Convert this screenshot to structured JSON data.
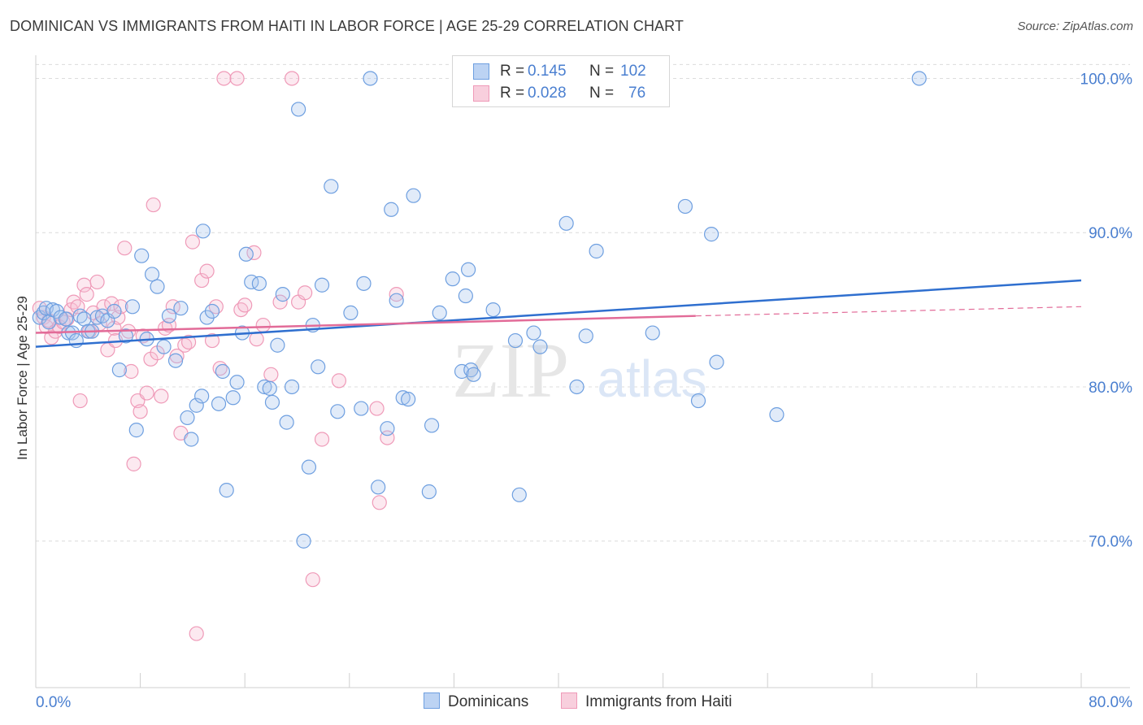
{
  "title": "DOMINICAN VS IMMIGRANTS FROM HAITI IN LABOR FORCE | AGE 25-29 CORRELATION CHART",
  "source": "Source: ZipAtlas.com",
  "watermark": {
    "zip": "ZIP",
    "atlas": "atlas"
  },
  "colors": {
    "blue": "#6e9fe0",
    "blue_fill": "#a9c6ef",
    "blue_line": "#2f6fcf",
    "pink": "#ef9ab8",
    "pink_fill": "#f6c1d3",
    "pink_line": "#e26b98",
    "axis_label": "#4a7fd0",
    "grid": "#dcdcdc"
  },
  "stats": {
    "r_label": "R =",
    "n_label": "N =",
    "rows": [
      {
        "r": "0.145",
        "n": "102"
      },
      {
        "r": "0.028",
        "n": "76"
      }
    ]
  },
  "legend": [
    "Dominicans",
    "Immigrants from Haiti"
  ],
  "chart_data": {
    "type": "scatter",
    "title": "DOMINICAN VS IMMIGRANTS FROM HAITI IN LABOR FORCE | AGE 25-29 CORRELATION CHART",
    "xlabel": "",
    "ylabel": "In Labor Force | Age 25-29",
    "xlim": [
      0,
      80
    ],
    "ylim": [
      60.5,
      101.5
    ],
    "x_tick_labels": [
      "0.0%",
      "80.0%"
    ],
    "y_ticks": [
      70,
      80,
      90,
      100
    ],
    "y_tick_labels": [
      "70.0%",
      "80.0%",
      "90.0%",
      "100.0%"
    ],
    "grid": true,
    "series": [
      {
        "name": "Dominicans",
        "R": 0.145,
        "N": 102,
        "trend": {
          "x": [
            0,
            80
          ],
          "y": [
            82.6,
            86.9
          ]
        },
        "points": [
          [
            0.3,
            84.5
          ],
          [
            0.6,
            84.8
          ],
          [
            0.8,
            85.1
          ],
          [
            1.0,
            84.2
          ],
          [
            1.3,
            85.0
          ],
          [
            1.6,
            84.9
          ],
          [
            1.9,
            84.5
          ],
          [
            2.3,
            84.4
          ],
          [
            2.5,
            83.5
          ],
          [
            2.8,
            83.5
          ],
          [
            3.1,
            83.0
          ],
          [
            3.4,
            84.6
          ],
          [
            3.7,
            84.4
          ],
          [
            4.0,
            83.6
          ],
          [
            4.3,
            83.6
          ],
          [
            4.7,
            84.5
          ],
          [
            5.1,
            84.6
          ],
          [
            5.5,
            84.3
          ],
          [
            6.0,
            84.9
          ],
          [
            6.4,
            81.1
          ],
          [
            6.9,
            83.3
          ],
          [
            7.4,
            85.2
          ],
          [
            7.7,
            77.2
          ],
          [
            8.1,
            88.5
          ],
          [
            8.5,
            83.1
          ],
          [
            8.9,
            87.3
          ],
          [
            9.3,
            86.5
          ],
          [
            9.8,
            82.6
          ],
          [
            10.2,
            84.6
          ],
          [
            10.7,
            81.7
          ],
          [
            11.1,
            85.1
          ],
          [
            11.6,
            78.0
          ],
          [
            11.9,
            76.6
          ],
          [
            12.3,
            78.8
          ],
          [
            12.7,
            79.4
          ],
          [
            12.8,
            90.1
          ],
          [
            13.1,
            84.5
          ],
          [
            13.5,
            84.9
          ],
          [
            14.0,
            78.9
          ],
          [
            14.3,
            81.0
          ],
          [
            14.6,
            73.3
          ],
          [
            15.1,
            79.3
          ],
          [
            15.4,
            80.3
          ],
          [
            15.8,
            83.5
          ],
          [
            16.1,
            88.6
          ],
          [
            16.5,
            86.8
          ],
          [
            17.1,
            86.7
          ],
          [
            17.5,
            80.0
          ],
          [
            17.9,
            79.9
          ],
          [
            18.1,
            79.0
          ],
          [
            18.5,
            82.7
          ],
          [
            18.9,
            86.0
          ],
          [
            19.2,
            77.7
          ],
          [
            19.6,
            80.0
          ],
          [
            20.1,
            98.0
          ],
          [
            20.5,
            70.0
          ],
          [
            20.9,
            74.8
          ],
          [
            21.2,
            84.0
          ],
          [
            21.6,
            81.3
          ],
          [
            21.9,
            86.6
          ],
          [
            22.6,
            93.0
          ],
          [
            23.1,
            78.4
          ],
          [
            24.1,
            84.8
          ],
          [
            24.9,
            78.6
          ],
          [
            25.1,
            86.7
          ],
          [
            25.6,
            100.0
          ],
          [
            26.2,
            73.5
          ],
          [
            26.9,
            77.3
          ],
          [
            27.2,
            91.5
          ],
          [
            27.6,
            85.6
          ],
          [
            28.1,
            79.3
          ],
          [
            28.5,
            79.2
          ],
          [
            28.9,
            92.4
          ],
          [
            30.1,
            73.2
          ],
          [
            30.3,
            77.5
          ],
          [
            30.9,
            84.8
          ],
          [
            31.9,
            87.0
          ],
          [
            32.6,
            81.0
          ],
          [
            32.9,
            85.9
          ],
          [
            33.1,
            87.6
          ],
          [
            33.3,
            81.1
          ],
          [
            33.5,
            80.8
          ],
          [
            35.0,
            85.0
          ],
          [
            36.7,
            83.0
          ],
          [
            37.0,
            73.0
          ],
          [
            38.1,
            83.5
          ],
          [
            38.6,
            82.6
          ],
          [
            40.6,
            90.6
          ],
          [
            41.4,
            80.0
          ],
          [
            42.1,
            83.3
          ],
          [
            42.9,
            88.8
          ],
          [
            47.2,
            83.5
          ],
          [
            49.7,
            91.7
          ],
          [
            50.7,
            79.1
          ],
          [
            51.7,
            89.9
          ],
          [
            52.1,
            81.6
          ],
          [
            56.7,
            78.2
          ],
          [
            67.6,
            100.0
          ]
        ]
      },
      {
        "name": "Immigrants from Haiti",
        "R": 0.028,
        "N": 76,
        "trend": {
          "x": [
            0,
            50.5
          ],
          "y": [
            83.5,
            84.6
          ]
        },
        "trend_dashed": {
          "x": [
            50.5,
            80
          ],
          "y": [
            84.6,
            85.2
          ]
        },
        "points": [
          [
            0.3,
            85.1
          ],
          [
            0.6,
            84.5
          ],
          [
            0.8,
            83.9
          ],
          [
            1.0,
            84.3
          ],
          [
            1.2,
            83.2
          ],
          [
            1.5,
            83.6
          ],
          [
            1.8,
            83.9
          ],
          [
            2.1,
            84.2
          ],
          [
            2.4,
            84.4
          ],
          [
            2.7,
            85.0
          ],
          [
            2.9,
            85.5
          ],
          [
            3.2,
            85.2
          ],
          [
            3.4,
            79.1
          ],
          [
            3.7,
            86.6
          ],
          [
            3.9,
            86.0
          ],
          [
            4.1,
            83.6
          ],
          [
            4.4,
            84.8
          ],
          [
            4.7,
            86.8
          ],
          [
            4.9,
            84.1
          ],
          [
            5.2,
            85.2
          ],
          [
            5.5,
            82.4
          ],
          [
            5.8,
            85.4
          ],
          [
            6.0,
            83.8
          ],
          [
            6.1,
            83.0
          ],
          [
            6.3,
            84.5
          ],
          [
            6.5,
            85.2
          ],
          [
            6.8,
            89.0
          ],
          [
            7.1,
            83.6
          ],
          [
            7.3,
            81.0
          ],
          [
            7.5,
            75.0
          ],
          [
            7.8,
            79.1
          ],
          [
            8.0,
            78.4
          ],
          [
            8.2,
            83.3
          ],
          [
            8.5,
            79.6
          ],
          [
            8.8,
            81.8
          ],
          [
            9.0,
            91.8
          ],
          [
            9.3,
            82.2
          ],
          [
            9.6,
            79.4
          ],
          [
            9.9,
            83.8
          ],
          [
            10.2,
            84.0
          ],
          [
            10.5,
            85.2
          ],
          [
            10.8,
            82.0
          ],
          [
            11.1,
            77.0
          ],
          [
            11.4,
            82.7
          ],
          [
            11.7,
            82.9
          ],
          [
            12.0,
            89.4
          ],
          [
            12.3,
            64.0
          ],
          [
            12.7,
            86.9
          ],
          [
            13.1,
            87.5
          ],
          [
            13.5,
            83.0
          ],
          [
            13.8,
            85.2
          ],
          [
            14.1,
            81.2
          ],
          [
            14.4,
            100.0
          ],
          [
            15.4,
            100.0
          ],
          [
            15.7,
            85.0
          ],
          [
            16.0,
            85.3
          ],
          [
            16.7,
            88.7
          ],
          [
            16.9,
            83.1
          ],
          [
            17.4,
            84.0
          ],
          [
            18.0,
            80.8
          ],
          [
            18.7,
            85.5
          ],
          [
            19.6,
            100.0
          ],
          [
            20.1,
            85.5
          ],
          [
            20.6,
            86.1
          ],
          [
            21.2,
            67.5
          ],
          [
            21.9,
            76.6
          ],
          [
            23.2,
            80.4
          ],
          [
            26.1,
            78.6
          ],
          [
            26.3,
            72.5
          ],
          [
            26.9,
            76.7
          ],
          [
            27.6,
            86.0
          ]
        ]
      }
    ]
  }
}
